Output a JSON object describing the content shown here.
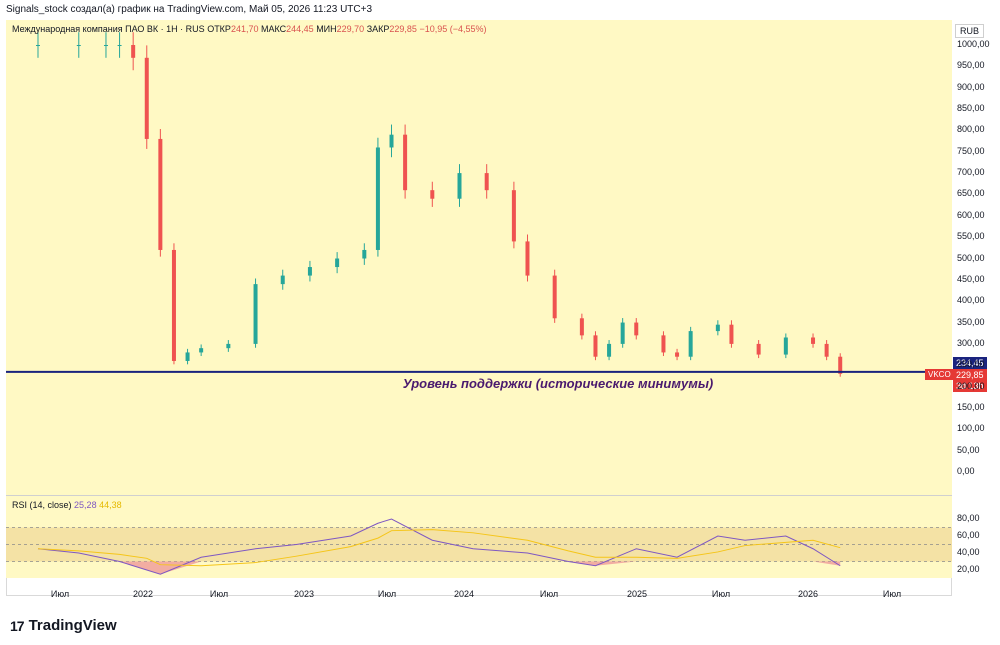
{
  "header": {
    "title": "Signals_stock создал(а) график на TradingView.com, Май 05, 2026 11:23 UTC+3"
  },
  "symbol": {
    "name": "Международная компания ПАО ВК · 1Н · RUS",
    "open_label": "ОТКР",
    "open": "241,70",
    "high_label": "МАКС",
    "high": "244,45",
    "low_label": "МИН",
    "low": "229,70",
    "close_label": "ЗАКР",
    "close": "229,85",
    "change": "−10,95 (−4,55%)"
  },
  "currency": "RUB",
  "price_axis": [
    "1000,00",
    "950,00",
    "900,00",
    "850,00",
    "800,00",
    "750,00",
    "700,00",
    "650,00",
    "600,00",
    "550,00",
    "500,00",
    "450,00",
    "400,00",
    "350,00",
    "300,00",
    "250,00",
    "200,00",
    "150,00",
    "100,00",
    "50,00",
    "0,00"
  ],
  "rsi_axis": [
    "80,00",
    "60,00",
    "40,00",
    "20,00"
  ],
  "time_axis": [
    "Июл",
    "2022",
    "Июл",
    "2023",
    "Июл",
    "2024",
    "Июл",
    "2025",
    "Июл",
    "2026",
    "Июл"
  ],
  "tags": {
    "support": "234,45",
    "ticker": "VKCO",
    "last": "229,85",
    "countdown": "3d 13h"
  },
  "annotation": "Уровень поддержки (исторические минимумы)",
  "rsi": {
    "label": "RSI (14, close)",
    "value": "25,28",
    "ma": "44,38"
  },
  "brand": "TradingView",
  "colors": {
    "up": "#26a69a",
    "down": "#ef5350",
    "bg": "#fff9c4",
    "support_line": "#1a237e",
    "rsi": "#7e57c2",
    "rsi_ma": "#f5c518",
    "annotation": "#4a1a6e"
  },
  "chart_data": [
    {
      "type": "candlestick",
      "ylim": [
        0,
        1000
      ],
      "horizontal_lines": [
        234.45
      ],
      "x": [
        "2021-06",
        "2021-09",
        "2021-11",
        "2021-12",
        "2022-01",
        "2022-02",
        "2022-03",
        "2022-04",
        "2022-05",
        "2022-06",
        "2022-08",
        "2022-10",
        "2022-12",
        "2023-02",
        "2023-04",
        "2023-06",
        "2023-07",
        "2023-08",
        "2023-09",
        "2023-11",
        "2024-01",
        "2024-03",
        "2024-05",
        "2024-06",
        "2024-08",
        "2024-10",
        "2024-11",
        "2024-12",
        "2025-01",
        "2025-02",
        "2025-04",
        "2025-05",
        "2025-06",
        "2025-08",
        "2025-09",
        "2025-11",
        "2026-01",
        "2026-03",
        "2026-04",
        "2026-05"
      ],
      "series": [
        {
          "values": [
            1000,
            1000,
            1000,
            1000,
            970,
            780,
            520,
            260,
            280,
            290,
            300,
            440,
            460,
            480,
            500,
            520,
            760,
            790,
            660,
            640,
            700,
            660,
            540,
            460,
            360,
            320,
            270,
            300,
            350,
            320,
            280,
            270,
            330,
            345,
            300,
            275,
            315,
            300,
            270,
            230
          ]
        }
      ]
    },
    {
      "type": "line",
      "ylim": [
        0,
        100
      ],
      "x": [
        "2021-06",
        "2021-09",
        "2021-12",
        "2022-02",
        "2022-03",
        "2022-06",
        "2022-10",
        "2023-01",
        "2023-05",
        "2023-07",
        "2023-08",
        "2023-11",
        "2024-02",
        "2024-06",
        "2024-09",
        "2024-11",
        "2025-02",
        "2025-05",
        "2025-08",
        "2025-10",
        "2026-01",
        "2026-03",
        "2026-05"
      ],
      "series": [
        {
          "name": "RSI",
          "values": [
            45,
            40,
            30,
            20,
            15,
            35,
            45,
            50,
            60,
            75,
            80,
            55,
            45,
            40,
            30,
            25,
            45,
            35,
            60,
            55,
            60,
            45,
            25
          ]
        }
      ]
    }
  ]
}
